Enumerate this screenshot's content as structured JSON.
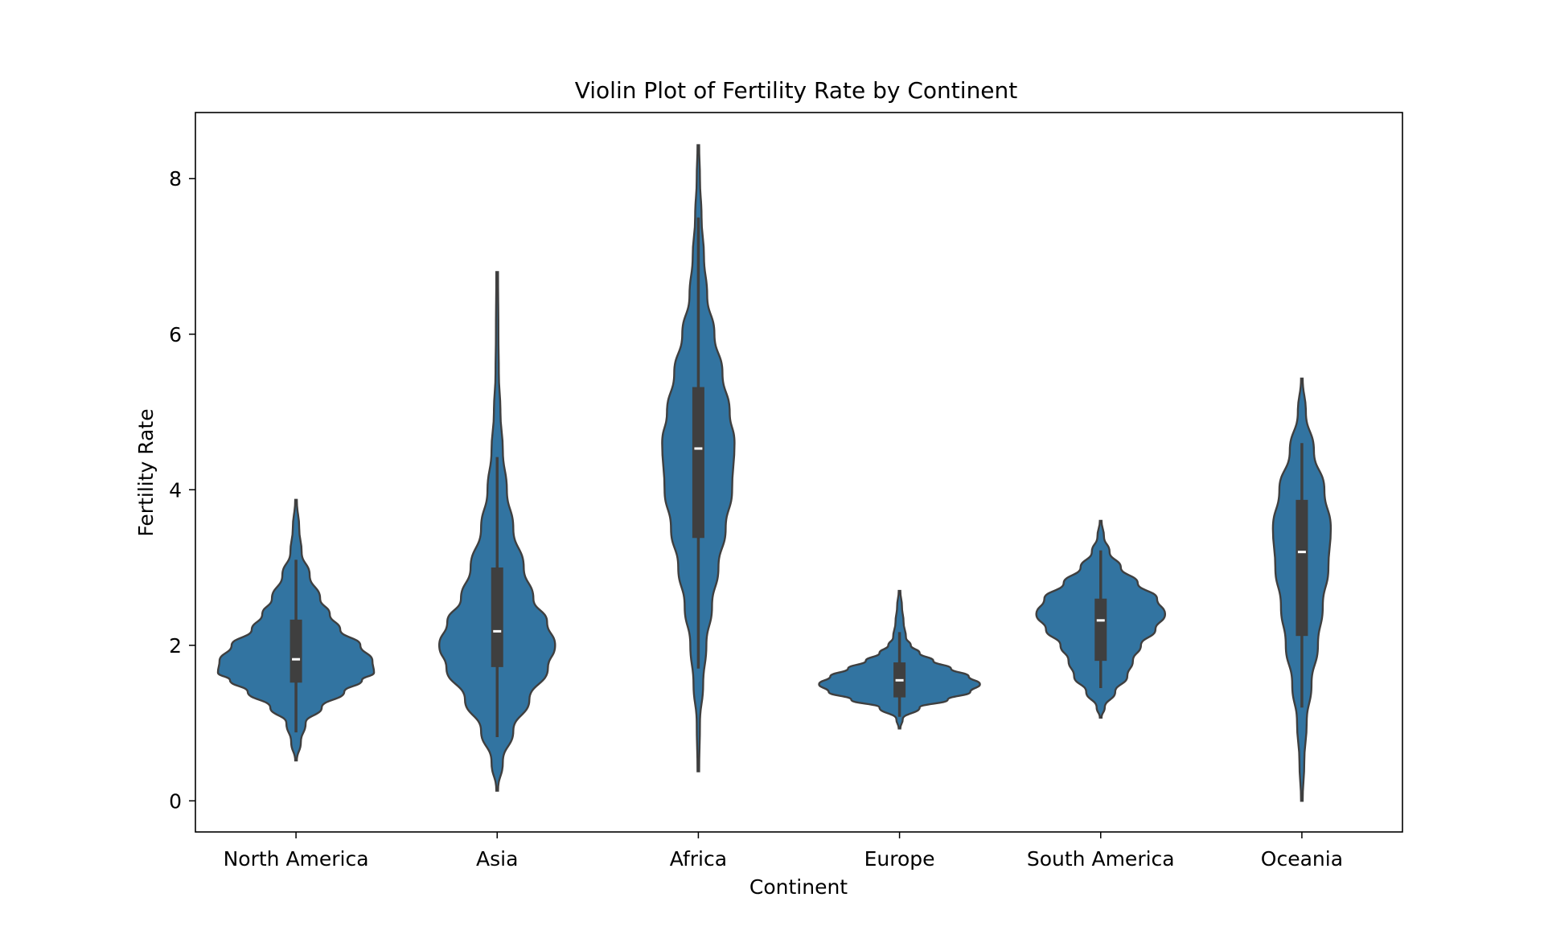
{
  "chart_data": {
    "type": "violin",
    "title": "Violin Plot of Fertility Rate by Continent",
    "xlabel": "Continent",
    "ylabel": "Fertility Rate",
    "ylim": [
      -0.4,
      8.85
    ],
    "yticks": [
      0,
      2,
      4,
      6,
      8
    ],
    "grid": false,
    "color": "#3274a1",
    "edge_color": "#3f3f3f",
    "categories": [
      "North America",
      "Asia",
      "Africa",
      "Europe",
      "South America",
      "Oceania"
    ],
    "violins": [
      {
        "category": "North America",
        "min_extent": 0.52,
        "max_extent": 3.87,
        "q1": 1.52,
        "median": 1.82,
        "q3": 2.33,
        "whisker_low": 0.88,
        "whisker_high": 3.1,
        "profile": [
          [
            0.52,
            0.01
          ],
          [
            0.75,
            0.06
          ],
          [
            1.0,
            0.12
          ],
          [
            1.2,
            0.32
          ],
          [
            1.4,
            0.6
          ],
          [
            1.55,
            0.82
          ],
          [
            1.65,
            0.97
          ],
          [
            1.8,
            0.95
          ],
          [
            2.0,
            0.8
          ],
          [
            2.2,
            0.55
          ],
          [
            2.4,
            0.42
          ],
          [
            2.6,
            0.3
          ],
          [
            2.9,
            0.17
          ],
          [
            3.2,
            0.07
          ],
          [
            3.5,
            0.04
          ],
          [
            3.87,
            0.01
          ]
        ]
      },
      {
        "category": "Asia",
        "min_extent": 0.13,
        "max_extent": 6.8,
        "q1": 1.72,
        "median": 2.18,
        "q3": 3.0,
        "whisker_low": 0.82,
        "whisker_high": 4.42,
        "profile": [
          [
            0.13,
            0.01
          ],
          [
            0.5,
            0.07
          ],
          [
            0.9,
            0.2
          ],
          [
            1.3,
            0.4
          ],
          [
            1.7,
            0.63
          ],
          [
            2.0,
            0.72
          ],
          [
            2.3,
            0.62
          ],
          [
            2.6,
            0.45
          ],
          [
            3.0,
            0.33
          ],
          [
            3.5,
            0.2
          ],
          [
            4.0,
            0.12
          ],
          [
            4.5,
            0.07
          ],
          [
            5.0,
            0.04
          ],
          [
            5.5,
            0.02
          ],
          [
            6.0,
            0.015
          ],
          [
            6.8,
            0.01
          ]
        ]
      },
      {
        "category": "Africa",
        "min_extent": 0.38,
        "max_extent": 8.43,
        "q1": 3.38,
        "median": 4.53,
        "q3": 5.32,
        "whisker_low": 1.7,
        "whisker_high": 7.5,
        "profile": [
          [
            0.38,
            0.01
          ],
          [
            1.0,
            0.02
          ],
          [
            1.5,
            0.06
          ],
          [
            2.0,
            0.1
          ],
          [
            2.5,
            0.17
          ],
          [
            3.0,
            0.25
          ],
          [
            3.5,
            0.34
          ],
          [
            4.0,
            0.42
          ],
          [
            4.6,
            0.45
          ],
          [
            5.0,
            0.39
          ],
          [
            5.5,
            0.3
          ],
          [
            6.0,
            0.2
          ],
          [
            6.5,
            0.11
          ],
          [
            7.0,
            0.07
          ],
          [
            7.5,
            0.04
          ],
          [
            8.0,
            0.02
          ],
          [
            8.43,
            0.01
          ]
        ]
      },
      {
        "category": "Europe",
        "min_extent": 0.93,
        "max_extent": 2.7,
        "q1": 1.33,
        "median": 1.55,
        "q3": 1.78,
        "whisker_low": 1.08,
        "whisker_high": 2.17,
        "profile": [
          [
            0.93,
            0.01
          ],
          [
            1.05,
            0.04
          ],
          [
            1.2,
            0.25
          ],
          [
            1.3,
            0.6
          ],
          [
            1.4,
            0.88
          ],
          [
            1.5,
            1.0
          ],
          [
            1.6,
            0.86
          ],
          [
            1.7,
            0.64
          ],
          [
            1.8,
            0.42
          ],
          [
            1.9,
            0.25
          ],
          [
            2.0,
            0.14
          ],
          [
            2.1,
            0.08
          ],
          [
            2.3,
            0.05
          ],
          [
            2.5,
            0.03
          ],
          [
            2.7,
            0.01
          ]
        ]
      },
      {
        "category": "South America",
        "min_extent": 1.07,
        "max_extent": 3.6,
        "q1": 1.8,
        "median": 2.32,
        "q3": 2.6,
        "whisker_low": 1.45,
        "whisker_high": 3.22,
        "profile": [
          [
            1.07,
            0.01
          ],
          [
            1.2,
            0.05
          ],
          [
            1.4,
            0.18
          ],
          [
            1.6,
            0.33
          ],
          [
            1.8,
            0.4
          ],
          [
            2.0,
            0.5
          ],
          [
            2.2,
            0.68
          ],
          [
            2.4,
            0.8
          ],
          [
            2.6,
            0.7
          ],
          [
            2.8,
            0.46
          ],
          [
            3.0,
            0.25
          ],
          [
            3.2,
            0.11
          ],
          [
            3.4,
            0.04
          ],
          [
            3.6,
            0.01
          ]
        ]
      },
      {
        "category": "Oceania",
        "min_extent": 0.0,
        "max_extent": 5.43,
        "q1": 2.12,
        "median": 3.2,
        "q3": 3.87,
        "whisker_low": 1.2,
        "whisker_high": 4.6,
        "profile": [
          [
            0.0,
            0.01
          ],
          [
            0.5,
            0.03
          ],
          [
            1.0,
            0.06
          ],
          [
            1.5,
            0.12
          ],
          [
            2.0,
            0.2
          ],
          [
            2.5,
            0.26
          ],
          [
            3.0,
            0.33
          ],
          [
            3.5,
            0.36
          ],
          [
            4.0,
            0.28
          ],
          [
            4.5,
            0.15
          ],
          [
            5.0,
            0.05
          ],
          [
            5.43,
            0.01
          ]
        ]
      }
    ]
  }
}
